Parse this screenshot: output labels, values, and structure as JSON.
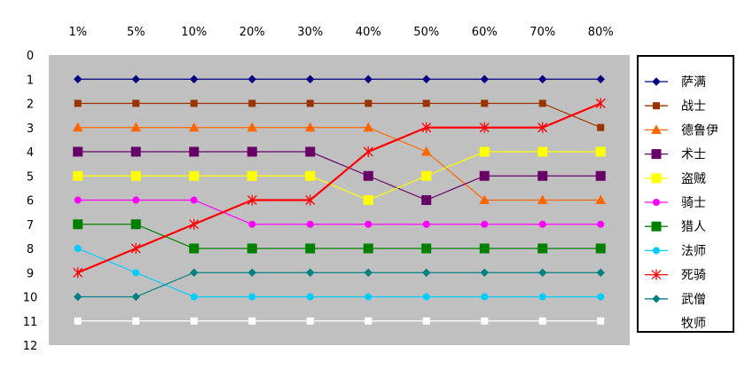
{
  "chart_data": {
    "type": "line",
    "x": [
      "1%",
      "5%",
      "10%",
      "20%",
      "30%",
      "40%",
      "50%",
      "60%",
      "70%",
      "80%"
    ],
    "ylim": [
      0,
      12
    ],
    "yticks": [
      "0",
      "1",
      "2",
      "3",
      "4",
      "5",
      "6",
      "7",
      "8",
      "9",
      "10",
      "11",
      "12"
    ],
    "y_inverted": true,
    "plot_background": "#c0c0c0",
    "grid": false,
    "legend_position": "right",
    "series": [
      {
        "name": "萨满",
        "color": "#000080",
        "marker": "diamond",
        "values": [
          1,
          1,
          1,
          1,
          1,
          1,
          1,
          1,
          1,
          1
        ]
      },
      {
        "name": "战士",
        "color": "#993300",
        "marker": "square",
        "values": [
          2,
          2,
          2,
          2,
          2,
          2,
          2,
          2,
          2,
          3
        ]
      },
      {
        "name": "德鲁伊",
        "color": "#ff6600",
        "marker": "triangle",
        "values": [
          3,
          3,
          3,
          3,
          3,
          3,
          4,
          6,
          6,
          6
        ]
      },
      {
        "name": "术士",
        "color": "#660066",
        "marker": "square-large",
        "values": [
          4,
          4,
          4,
          4,
          4,
          5,
          6,
          5,
          5,
          5
        ]
      },
      {
        "name": "盗贼",
        "color": "#ffff00",
        "marker": "square-large",
        "values": [
          5,
          5,
          5,
          5,
          5,
          6,
          5,
          4,
          4,
          4
        ]
      },
      {
        "name": "骑士",
        "color": "#ff00ff",
        "marker": "circle",
        "values": [
          6,
          6,
          6,
          7,
          7,
          7,
          7,
          7,
          7,
          7
        ]
      },
      {
        "name": "猎人",
        "color": "#008000",
        "marker": "square-large",
        "values": [
          7,
          7,
          8,
          8,
          8,
          8,
          8,
          8,
          8,
          8
        ]
      },
      {
        "name": "法师",
        "color": "#00ccff",
        "marker": "circle",
        "values": [
          8,
          9,
          10,
          10,
          10,
          10,
          10,
          10,
          10,
          10
        ]
      },
      {
        "name": "死骑",
        "color": "#ff0000",
        "marker": "star",
        "values": [
          9,
          8,
          7,
          6,
          6,
          4,
          3,
          3,
          3,
          2
        ]
      },
      {
        "name": "武僧",
        "color": "#008080",
        "marker": "diamond",
        "values": [
          10,
          10,
          9,
          9,
          9,
          9,
          9,
          9,
          9,
          9
        ]
      },
      {
        "name": "牧师",
        "color": "#ffffff",
        "marker": "square",
        "values": [
          11,
          11,
          11,
          11,
          11,
          11,
          11,
          11,
          11,
          11
        ]
      }
    ]
  }
}
